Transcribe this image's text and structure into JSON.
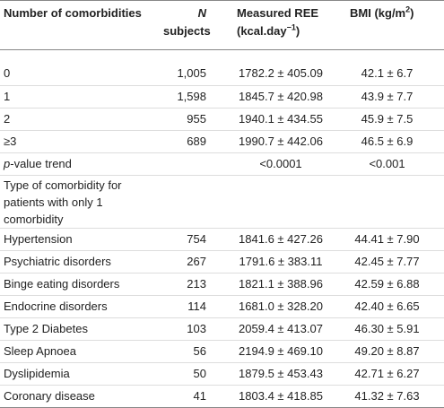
{
  "table": {
    "header": {
      "comorbidities": "Number of comorbidities",
      "n_italic": "N",
      "n_rest": "subjects",
      "ree": "Measured REE (kcal.day",
      "ree_sup": "−1",
      "ree_end": ")",
      "bmi": "BMI (kg/m",
      "bmi_sup": "2",
      "bmi_end": ")"
    },
    "count_rows": [
      [
        "0",
        "1,005",
        "1782.2 ± 405.09",
        "42.1 ± 6.7"
      ],
      [
        "1",
        "1,598",
        "1845.7 ± 420.98",
        "43.9 ± 7.7"
      ],
      [
        "2",
        "955",
        "1940.1 ± 434.55",
        "45.9 ± 7.5"
      ],
      [
        "≥3",
        "689",
        "1990.7 ± 442.06",
        "46.5 ± 6.9"
      ]
    ],
    "trend": {
      "label_italic": "p",
      "label_rest": "-value trend",
      "ree": "<0.0001",
      "bmi": "<0.001"
    },
    "type_heading": "Type of comorbidity for patients with only 1 comorbidity",
    "type_rows": [
      [
        "Hypertension",
        "754",
        "1841.6 ± 427.26",
        "44.41 ± 7.90"
      ],
      [
        "Psychiatric disorders",
        "267",
        "1791.6 ± 383.11",
        "42.45 ± 7.77"
      ],
      [
        "Binge eating disorders",
        "213",
        "1821.1 ± 388.96",
        "42.59 ± 6.88"
      ],
      [
        "Endocrine disorders",
        "114",
        "1681.0 ± 328.20",
        "42.40 ± 6.65"
      ],
      [
        "Type 2 Diabetes",
        "103",
        "2059.4 ± 413.07",
        "46.30 ± 5.91"
      ],
      [
        "Sleep Apnoea",
        "56",
        "2194.9 ± 469.10",
        "49.20 ± 8.87"
      ],
      [
        "Dyslipidemia",
        "50",
        "1879.5 ± 453.43",
        "42.71 ± 6.27"
      ],
      [
        "Coronary disease",
        "41",
        "1803.4 ± 418.85",
        "41.32 ± 7.63"
      ]
    ]
  }
}
